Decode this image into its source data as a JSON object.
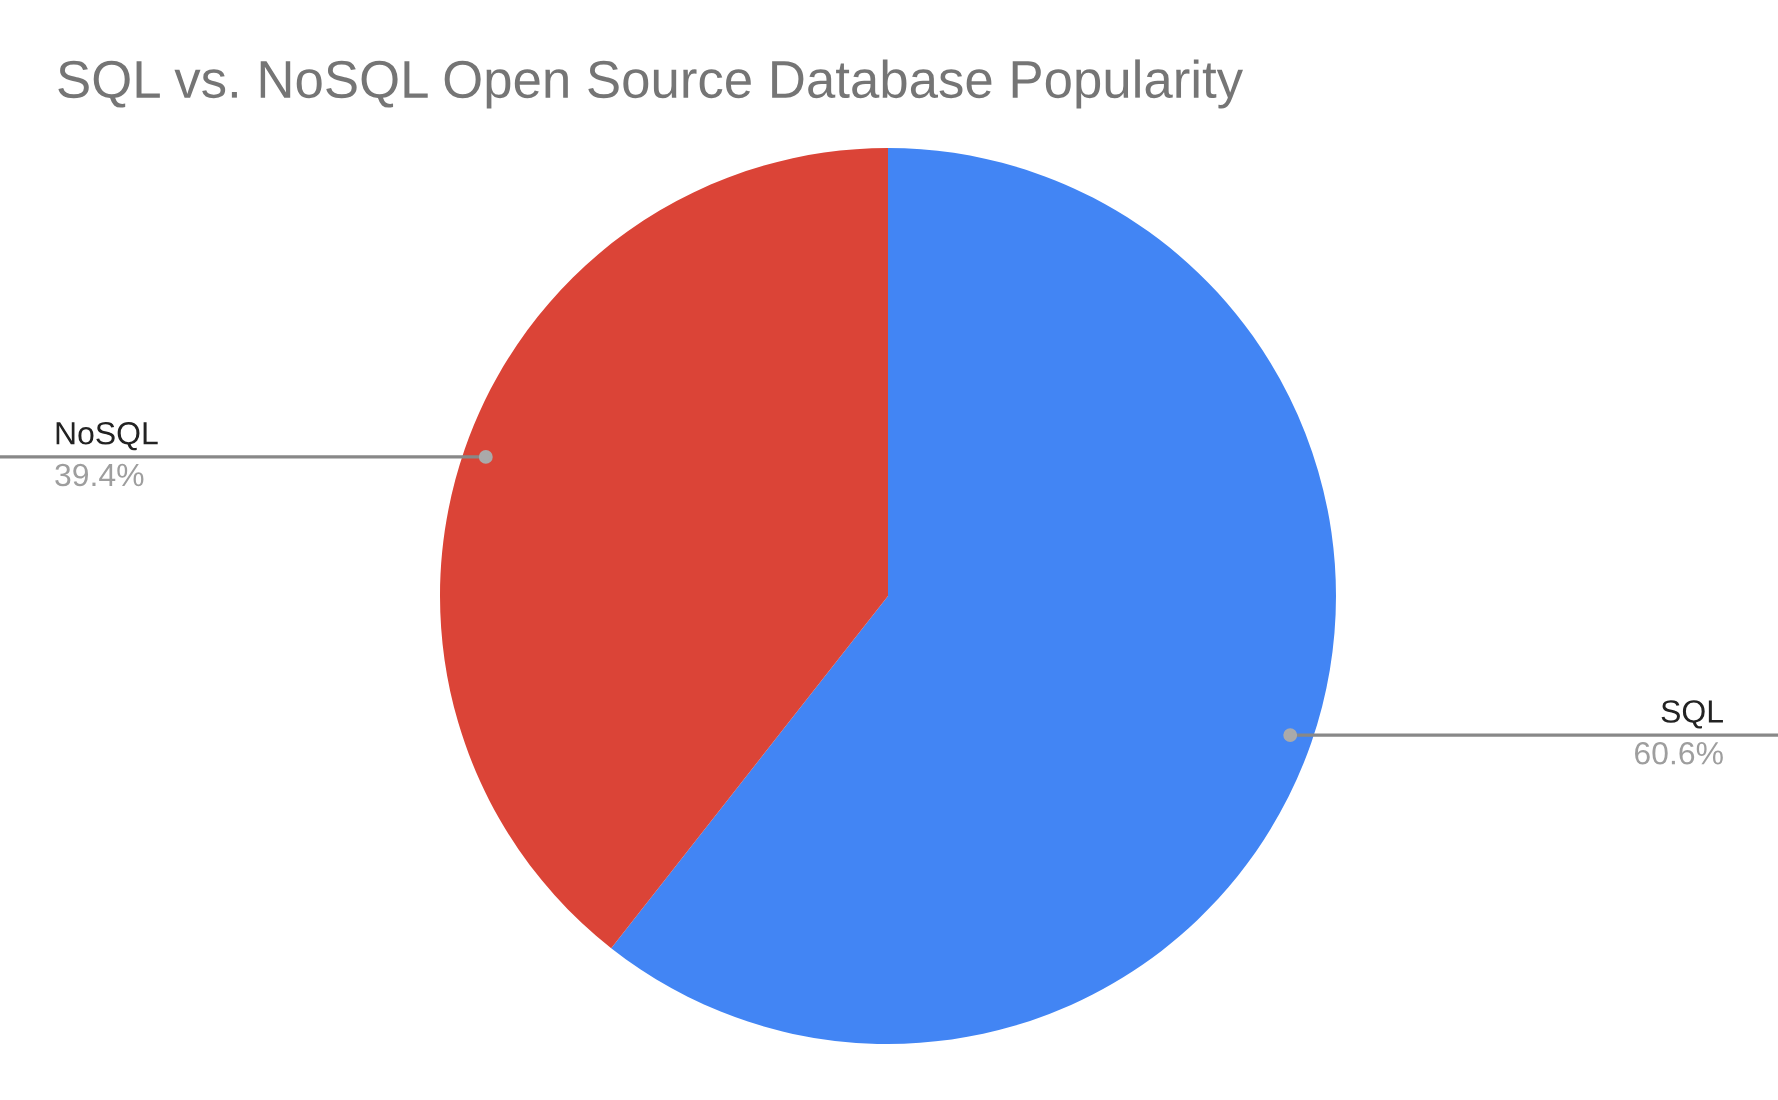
{
  "chart_data": {
    "type": "pie",
    "title": "SQL vs. NoSQL Open Source Database Popularity",
    "categories": [
      "SQL",
      "NoSQL"
    ],
    "values": [
      60.6,
      39.4
    ],
    "colors": [
      "#4285f4",
      "#db4437"
    ],
    "value_labels": [
      "60.6%",
      "39.4%"
    ],
    "legend": false
  }
}
